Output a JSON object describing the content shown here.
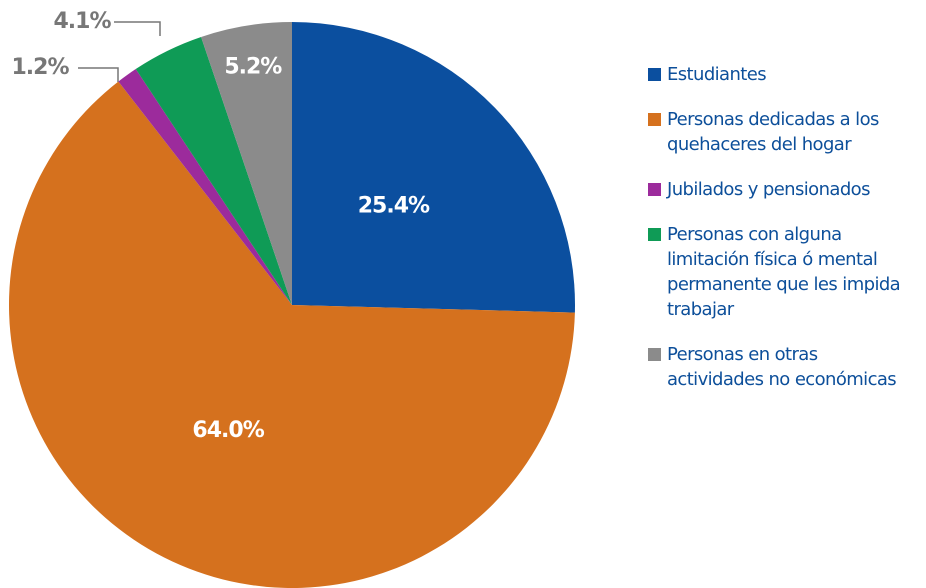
{
  "chart_data": {
    "type": "pie",
    "categories": [
      "Estudiantes",
      "Personas dedicadas a los quehaceres del hogar",
      "Jubilados y pensionados",
      "Personas con alguna limitación física ó mental permanente que les impida trabajar",
      "Personas en otras actividades no económicas"
    ],
    "values": [
      25.4,
      64.0,
      1.2,
      4.1,
      5.2
    ],
    "value_labels": [
      "25.4%",
      "64.0%",
      "1.2%",
      "4.1%",
      "5.2%"
    ],
    "colors": [
      "#0b4f9f",
      "#d5711e",
      "#9c2b9c",
      "#0f9b56",
      "#8b8b8b"
    ],
    "legend": "right"
  }
}
